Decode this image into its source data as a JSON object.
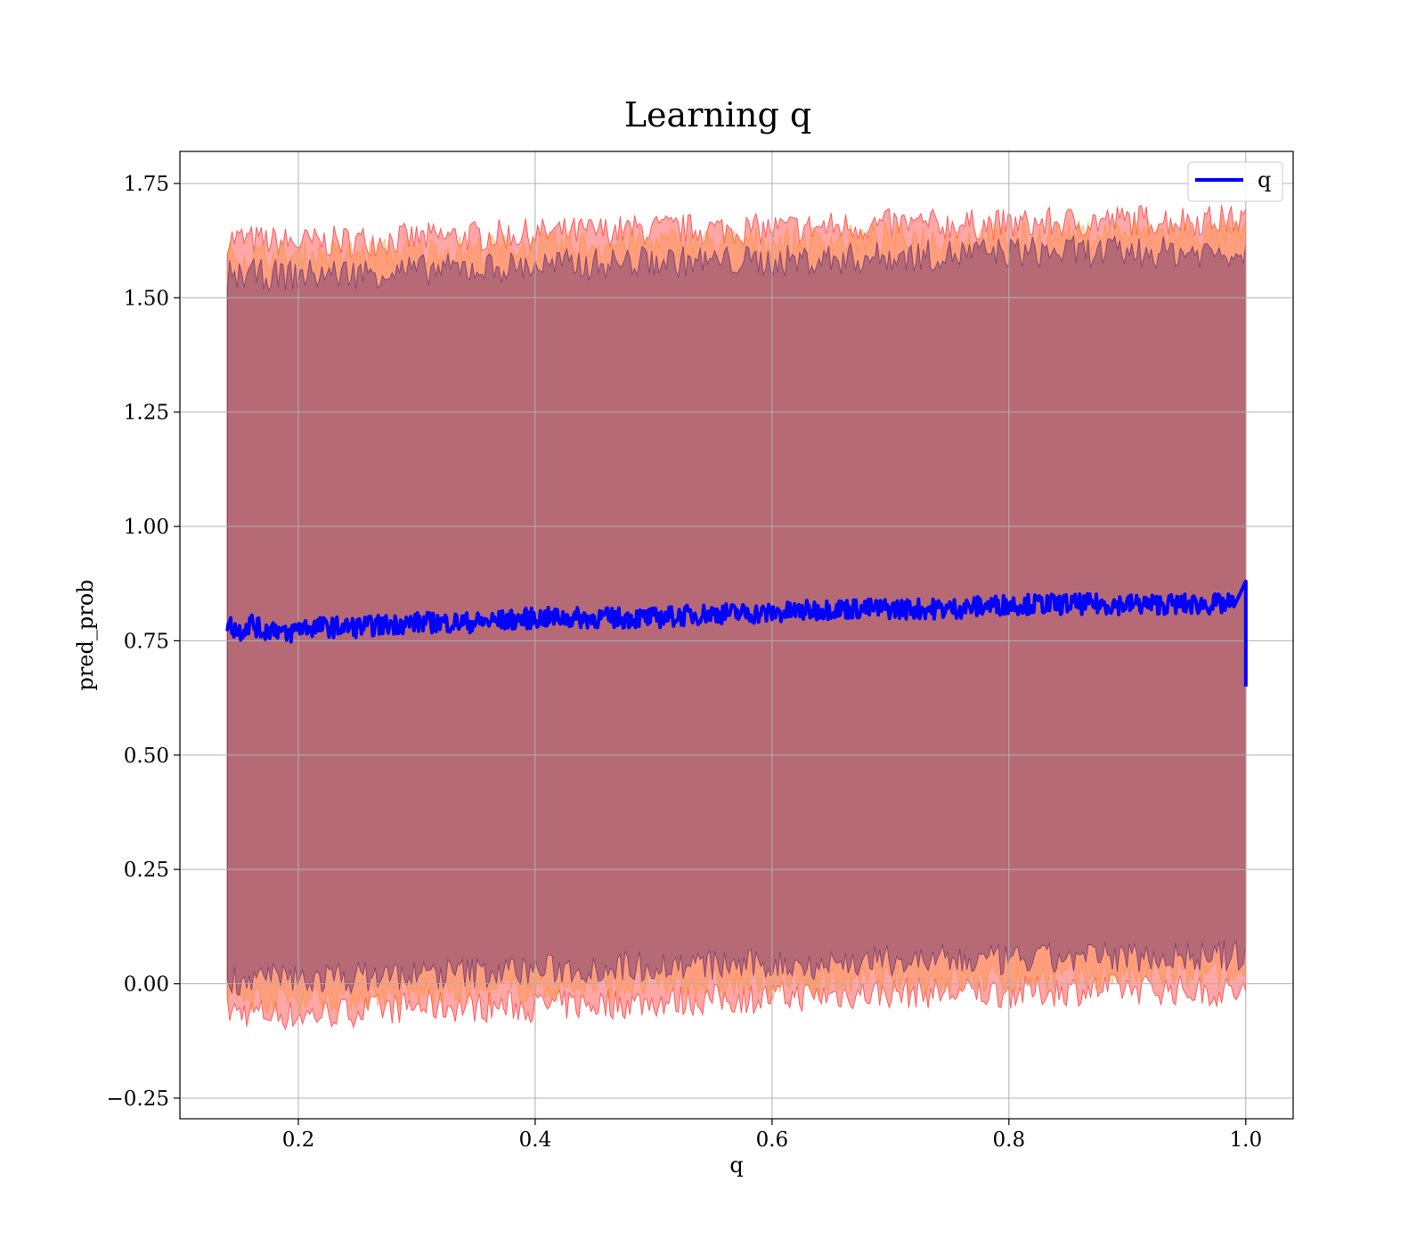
{
  "chart_data": {
    "type": "line",
    "title": "Learning q",
    "xlabel": "q",
    "ylabel": "pred_prob",
    "xlim": [
      0.1,
      1.04
    ],
    "ylim": [
      -0.295,
      1.82
    ],
    "xticks": [
      0.2,
      0.4,
      0.6,
      0.8,
      1.0
    ],
    "xtick_labels": [
      "0.2",
      "0.4",
      "0.6",
      "0.8",
      "1.0"
    ],
    "yticks": [
      -0.25,
      0.0,
      0.25,
      0.5,
      0.75,
      1.0,
      1.25,
      1.5,
      1.75
    ],
    "ytick_labels": [
      "−0.25",
      "0.00",
      "0.25",
      "0.50",
      "0.75",
      "1.00",
      "1.25",
      "1.50",
      "1.75"
    ],
    "grid": true,
    "legend_position": "top-right",
    "series": [
      {
        "name": "q",
        "color": "#0000ff",
        "x": [
          0.14,
          0.15,
          0.16,
          0.17,
          0.18,
          0.19,
          0.2,
          0.25,
          0.3,
          0.35,
          0.4,
          0.45,
          0.5,
          0.55,
          0.6,
          0.65,
          0.7,
          0.75,
          0.8,
          0.85,
          0.9,
          0.95,
          0.99,
          1.0
        ],
        "y": [
          0.79,
          0.77,
          0.79,
          0.77,
          0.78,
          0.76,
          0.78,
          0.78,
          0.79,
          0.79,
          0.8,
          0.8,
          0.8,
          0.81,
          0.81,
          0.82,
          0.82,
          0.82,
          0.83,
          0.83,
          0.83,
          0.83,
          0.83,
          0.65
        ]
      }
    ],
    "bands": [
      {
        "color": "#ff0000",
        "opacity": 0.35,
        "x": [
          0.14,
          0.2,
          0.3,
          0.4,
          0.5,
          0.6,
          0.7,
          0.8,
          0.9,
          1.0
        ],
        "upper": [
          1.63,
          1.62,
          1.63,
          1.64,
          1.65,
          1.65,
          1.66,
          1.66,
          1.67,
          1.67
        ],
        "lower": [
          -0.06,
          -0.07,
          -0.05,
          -0.05,
          -0.04,
          -0.03,
          -0.02,
          -0.02,
          -0.01,
          -0.02
        ]
      },
      {
        "color": "#ff8c1a",
        "opacity": 0.3,
        "x": [
          0.14,
          0.2,
          0.3,
          0.4,
          0.5,
          0.6,
          0.7,
          0.8,
          0.9,
          1.0
        ],
        "upper": [
          1.59,
          1.59,
          1.6,
          1.61,
          1.62,
          1.62,
          1.63,
          1.63,
          1.64,
          1.64
        ],
        "lower": [
          -0.03,
          -0.03,
          -0.02,
          -0.01,
          0.0,
          0.0,
          0.01,
          0.01,
          0.02,
          0.02
        ]
      },
      {
        "color": "#5a2a6e",
        "opacity": 0.45,
        "x": [
          0.14,
          0.2,
          0.3,
          0.4,
          0.5,
          0.6,
          0.7,
          0.8,
          0.9,
          1.0
        ],
        "upper": [
          1.55,
          1.55,
          1.56,
          1.57,
          1.58,
          1.58,
          1.59,
          1.6,
          1.6,
          1.6
        ],
        "lower": [
          0.01,
          0.01,
          0.02,
          0.03,
          0.04,
          0.04,
          0.05,
          0.05,
          0.06,
          0.06
        ]
      }
    ]
  }
}
